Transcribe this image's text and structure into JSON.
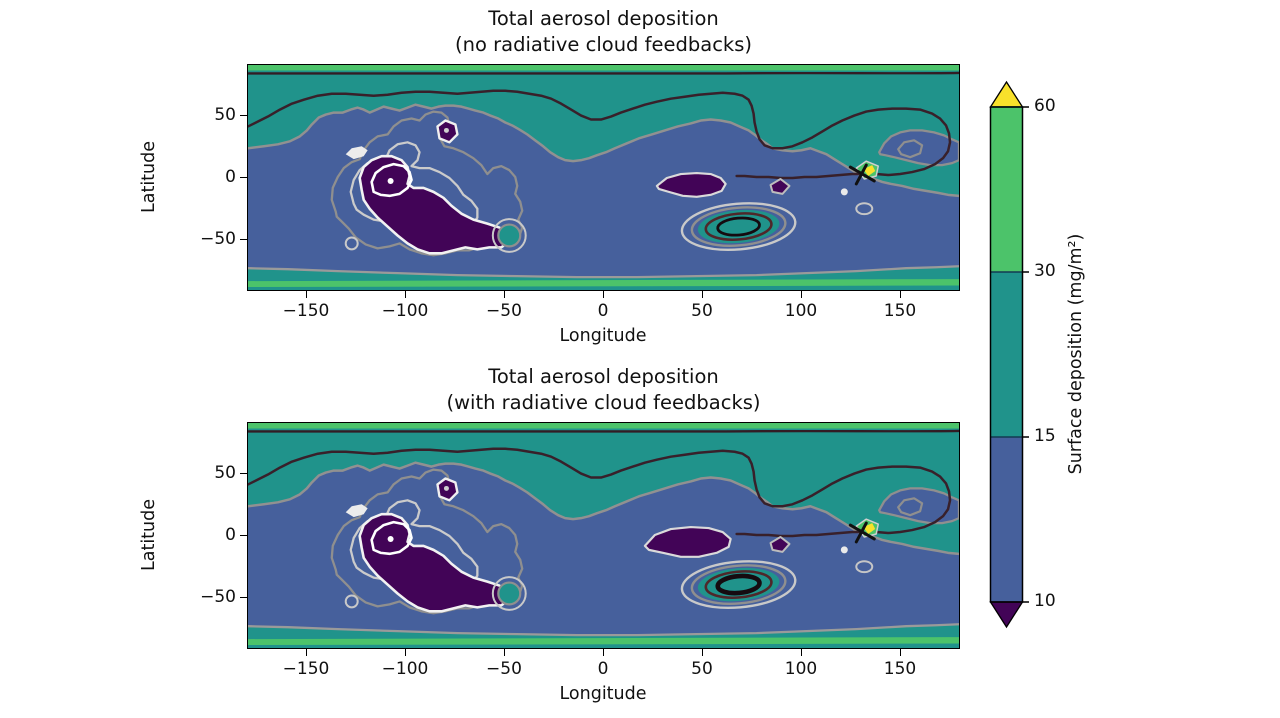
{
  "figure": {
    "background": "#ffffff",
    "subplots": [
      {
        "id": "top",
        "title_line1": "Total aerosol deposition",
        "title_line2": "(no radiative cloud feedbacks)",
        "xlabel": "Longitude",
        "ylabel": "Latitude"
      },
      {
        "id": "bottom",
        "title_line1": "Total aerosol deposition",
        "title_line2": "(with radiative cloud feedbacks)",
        "xlabel": "Longitude",
        "ylabel": "Latitude"
      }
    ],
    "axes": {
      "lon_ticks": [
        "−150",
        "−100",
        "−50",
        "0",
        "50",
        "100",
        "150"
      ],
      "lat_ticks": [
        "50",
        "0",
        "−50"
      ]
    },
    "colorbar": {
      "label": "Surface deposition (mg/m²)",
      "ticks": [
        "60",
        "30",
        "15",
        "10"
      ],
      "levels": [
        10,
        15,
        30,
        60
      ],
      "colors": {
        "under_10": "#420457",
        "c10_15": "#46609c",
        "c15_30": "#20938b",
        "c30_60": "#4cc36a",
        "over_60": "#f8e12b"
      }
    }
  },
  "chart_data": [
    {
      "type": "contour",
      "title": "Total aerosol deposition (no radiative cloud feedbacks)",
      "xlabel": "Longitude",
      "ylabel": "Latitude",
      "xlim": [
        -180,
        180
      ],
      "ylim": [
        -90,
        90
      ],
      "x_ticks": [
        -150,
        -100,
        -50,
        0,
        50,
        100,
        150
      ],
      "y_ticks": [
        50,
        0,
        -50
      ],
      "fill_levels_mg_m2": [
        10,
        15,
        30,
        60
      ],
      "colorbar_label": "Surface deposition (mg/m²)",
      "colormap": "discrete viridis-like (purple <10, blue 10-15, teal 15-30, green 30-60, yellow >60)",
      "grid": false,
      "legend": false,
      "features": [
        {
          "desc": "zonal band >30 mg/m² hugging the northern map edge",
          "lon_range": [
            -180,
            180
          ],
          "lat": 88
        },
        {
          "desc": "zonal band >30 mg/m² near the southern map edge",
          "lon_range": [
            -180,
            180
          ],
          "lat": -85
        },
        {
          "desc": "teal 15-30 mg/m² region over high northern latitudes",
          "lat_range": [
            35,
            85
          ]
        },
        {
          "desc": "broad blue 10-15 mg/m² belt across tropics and southern midlatitudes",
          "lat_range": [
            -70,
            30
          ]
        },
        {
          "desc": "principal deposition minimum <10 mg/m² with nested white contours and central dot",
          "lon": -110,
          "lat": -18
        },
        {
          "desc": "small secondary minimum <10 mg/m² ringed in white",
          "lon": -84,
          "lat": 38
        },
        {
          "desc": "elongated minimum <10 mg/m²",
          "lon_range": [
            25,
            60
          ],
          "lat": -8
        },
        {
          "desc": "small minimum <10 mg/m²",
          "lon": 87,
          "lat": -10
        },
        {
          "desc": "ringed local maximum (teal core, dark contour ring)",
          "lon": 66,
          "lat": -40
        },
        {
          "desc": "small 15-30 mg/m² spot with gray ring",
          "lon": -49,
          "lat": -46
        },
        {
          "desc": "injection-site × marker with localized >60 mg/m² (yellow/green) patch",
          "lon": 128,
          "lat": 2
        },
        {
          "desc": "teal pocket with blue 10-15 core",
          "lon": 152,
          "lat": 23
        }
      ]
    },
    {
      "type": "contour",
      "title": "Total aerosol deposition (with radiative cloud feedbacks)",
      "xlabel": "Longitude",
      "ylabel": "Latitude",
      "xlim": [
        -180,
        180
      ],
      "ylim": [
        -90,
        90
      ],
      "x_ticks": [
        -150,
        -100,
        -50,
        0,
        50,
        100,
        150
      ],
      "y_ticks": [
        50,
        0,
        -50
      ],
      "fill_levels_mg_m2": [
        10,
        15,
        30,
        60
      ],
      "colorbar_label": "Surface deposition (mg/m²)",
      "colormap": "discrete viridis-like (purple <10, blue 10-15, teal 15-30, green 30-60, yellow >60)",
      "grid": false,
      "legend": false,
      "features": [
        {
          "desc": "same overall pattern as no-feedback case",
          "note": "differences are subtle"
        },
        {
          "desc": "principal minimum <10 mg/m² slightly broader",
          "lon": -110,
          "lat": -18
        },
        {
          "desc": "elongated <10 mg/m² minimum larger than in no-feedback case",
          "lon_range": [
            20,
            62
          ],
          "lat": -8
        },
        {
          "desc": "ringed local maximum with thicker/stronger dark contour",
          "lon": 66,
          "lat": -40
        },
        {
          "desc": "injection-site × marker with >60 mg/m² patch",
          "lon": 128,
          "lat": 2
        }
      ]
    }
  ]
}
